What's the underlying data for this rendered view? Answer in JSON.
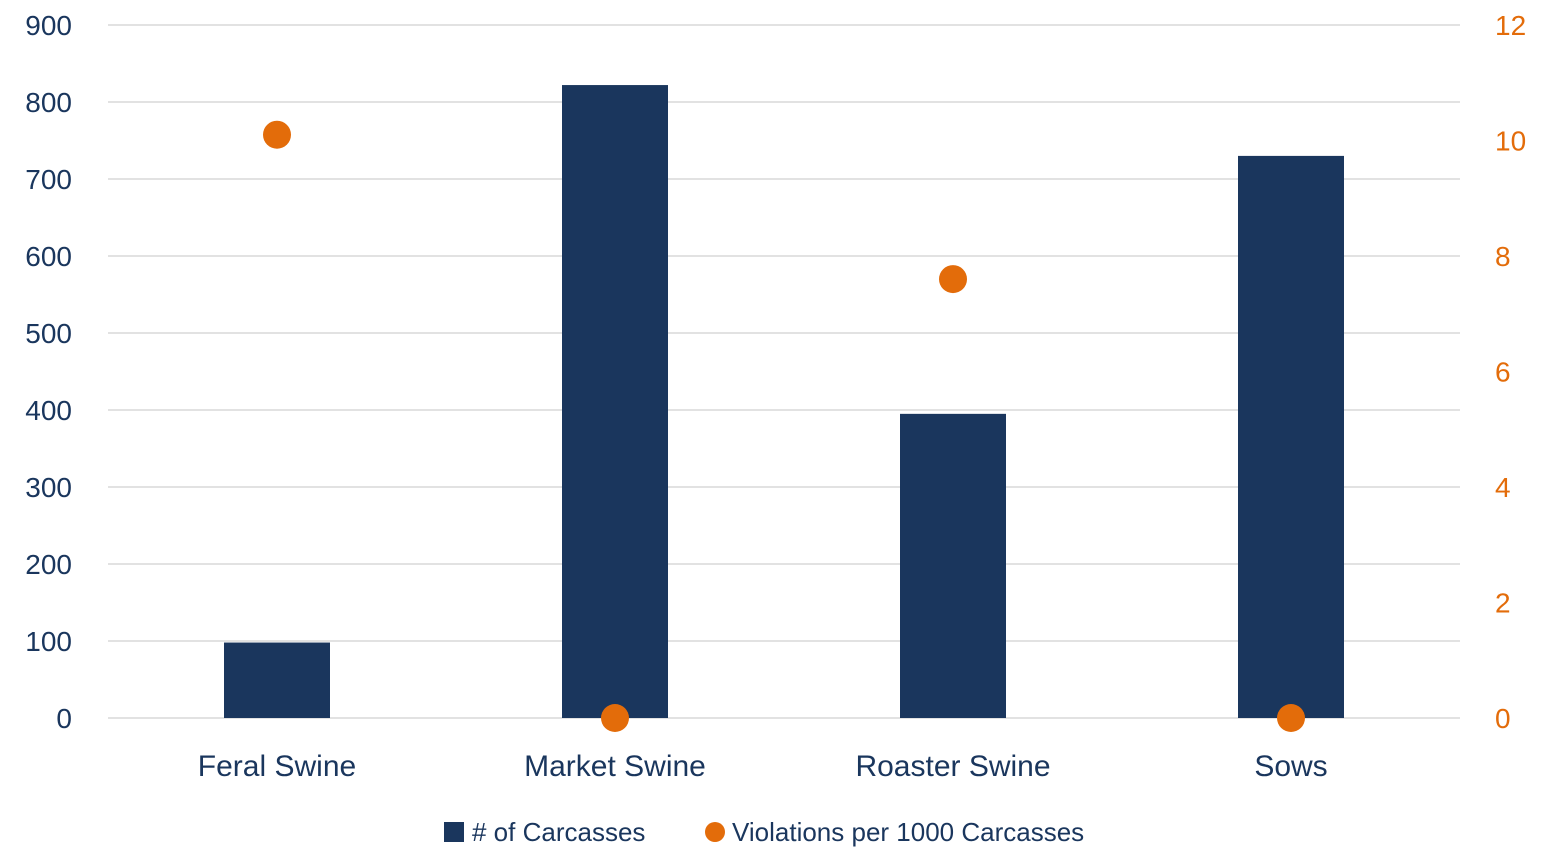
{
  "chart_data": {
    "type": "bar",
    "categories": [
      "Feral Swine",
      "Market Swine",
      "Roaster Swine",
      "Sows"
    ],
    "series": [
      {
        "name": "# of Carcasses",
        "kind": "bar",
        "axis": "left",
        "values": [
          98,
          822,
          395,
          730
        ]
      },
      {
        "name": "Violations per 1000 Carcasses",
        "kind": "scatter",
        "axis": "right",
        "values": [
          10.1,
          0,
          7.6,
          0
        ]
      }
    ],
    "y_left": {
      "ylim": [
        0,
        900
      ],
      "ticks": [
        "0",
        "100",
        "200",
        "300",
        "400",
        "500",
        "600",
        "700",
        "800",
        "900"
      ]
    },
    "y_right": {
      "ylim": [
        0,
        12
      ],
      "ticks": [
        "0",
        "2",
        "4",
        "6",
        "8",
        "10",
        "12"
      ]
    },
    "grid": true,
    "legend_position": "bottom",
    "title": "",
    "xlabel": "",
    "ylabel": "",
    "colors": {
      "bar": "#1a365d",
      "marker": "#e36c0a",
      "left_axis_text": "#1a365d",
      "right_axis_text": "#e36c0a",
      "category_text": "#1a365d",
      "legend_text": "#1a365d",
      "grid": "#d9d9d9"
    }
  }
}
